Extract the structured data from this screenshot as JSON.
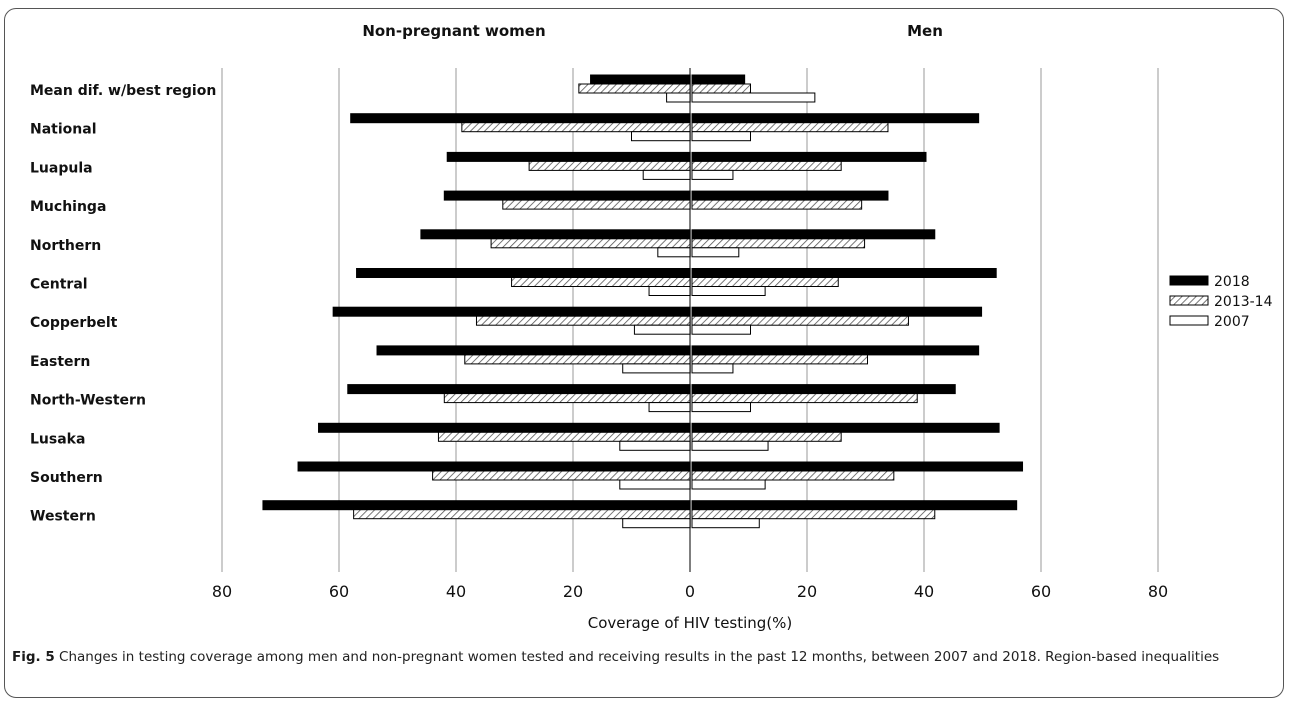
{
  "chart_data": {
    "type": "bar",
    "orientation": "horizontal-butterfly",
    "panels": [
      "Non-pregnant women",
      "Men"
    ],
    "categories": [
      "Mean dif. w/best region",
      "National",
      "Luapula",
      "Muchinga",
      "Northern",
      "Central",
      "Copperbelt",
      "Eastern",
      "North-Western",
      "Lusaka",
      "Southern",
      "Western"
    ],
    "series": [
      {
        "name": "2018",
        "women": [
          17,
          58,
          41.5,
          42,
          46,
          57,
          61,
          53.5,
          58.5,
          63.5,
          67,
          73
        ],
        "men": [
          9,
          49,
          40,
          33.5,
          41.5,
          52,
          49.5,
          49,
          45,
          52.5,
          56.5,
          55.5
        ]
      },
      {
        "name": "2013-14",
        "women": [
          19,
          39,
          27.5,
          32,
          34,
          30.5,
          36.5,
          38.5,
          42,
          43,
          44,
          57.5
        ],
        "men": [
          10,
          33.5,
          25.5,
          29,
          29.5,
          25,
          37,
          30,
          38.5,
          25.5,
          34.5,
          41.5
        ]
      },
      {
        "name": "2007",
        "women": [
          4,
          10,
          8,
          0,
          5.5,
          7,
          9.5,
          11.5,
          7,
          12,
          12,
          11.5
        ],
        "men": [
          21,
          10,
          7,
          0,
          8,
          12.5,
          10,
          7,
          10,
          13,
          12.5,
          11.5
        ]
      }
    ],
    "x_ticks": [
      "80",
      "60",
      "40",
      "20",
      "0",
      "20",
      "40",
      "60",
      "80"
    ],
    "xlim": [
      0,
      80
    ],
    "xlabel": "Coverage of HIV testing(%)",
    "grid": "vertical",
    "legend_position": "right",
    "colors": {
      "2018": "#000000",
      "2013-14": "#ffffff",
      "2007": "#ffffff",
      "hatch": "#555555"
    }
  },
  "caption": {
    "label": "Fig. 5",
    "text": "Changes in testing coverage among men and non-pregnant women tested and receiving results in the past 12 months, between 2007 and 2018. Region-based inequalities"
  }
}
